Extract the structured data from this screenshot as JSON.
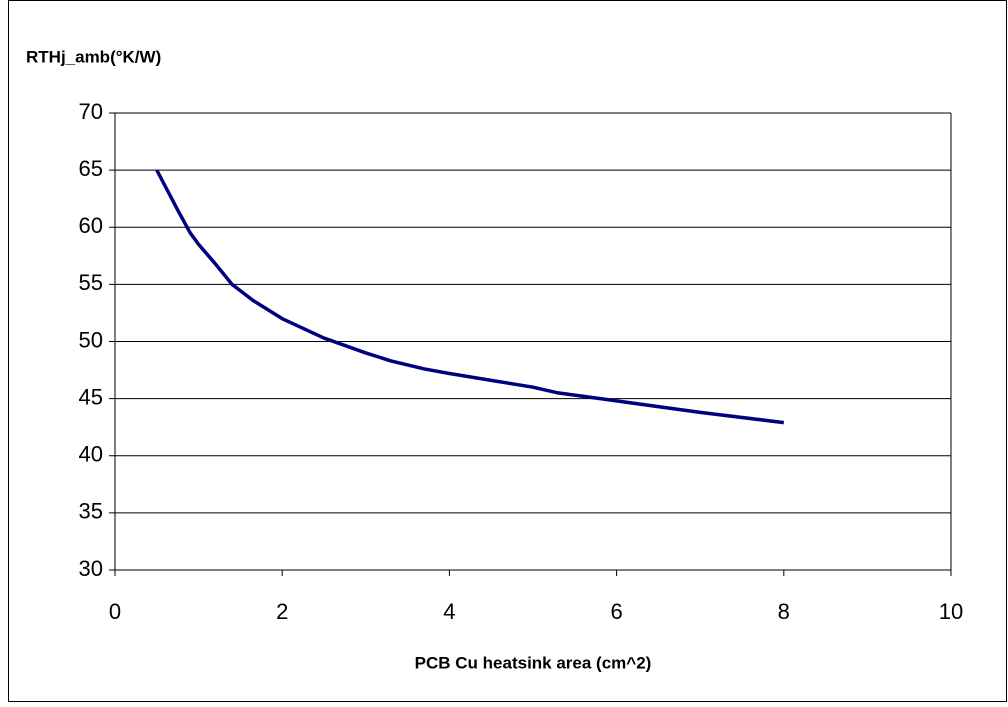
{
  "chart_data": {
    "type": "line",
    "ylabel": "RTHj_amb(°K/W)",
    "xlabel": "PCB Cu heatsink area (cm^2)",
    "x": [
      0.5,
      0.75,
      0.9,
      1,
      1.2,
      1.4,
      1.65,
      2,
      2.5,
      3,
      3.3,
      3.7,
      4,
      4.5,
      5,
      5.3,
      6,
      7,
      8
    ],
    "series": [
      {
        "color": "#000080",
        "values": [
          65,
          61.5,
          59.5,
          58.5,
          56.8,
          55,
          53.6,
          52,
          50.3,
          49,
          48.3,
          47.6,
          47.2,
          46.6,
          46,
          45.5,
          44.8,
          43.8,
          42.9
        ]
      }
    ],
    "xlim": [
      0,
      10
    ],
    "xticks": [
      0,
      2,
      4,
      6,
      8,
      10
    ],
    "ylim": [
      30,
      70
    ],
    "yticks": [
      30,
      35,
      40,
      45,
      50,
      55,
      60,
      65,
      70
    ],
    "grid": true
  }
}
